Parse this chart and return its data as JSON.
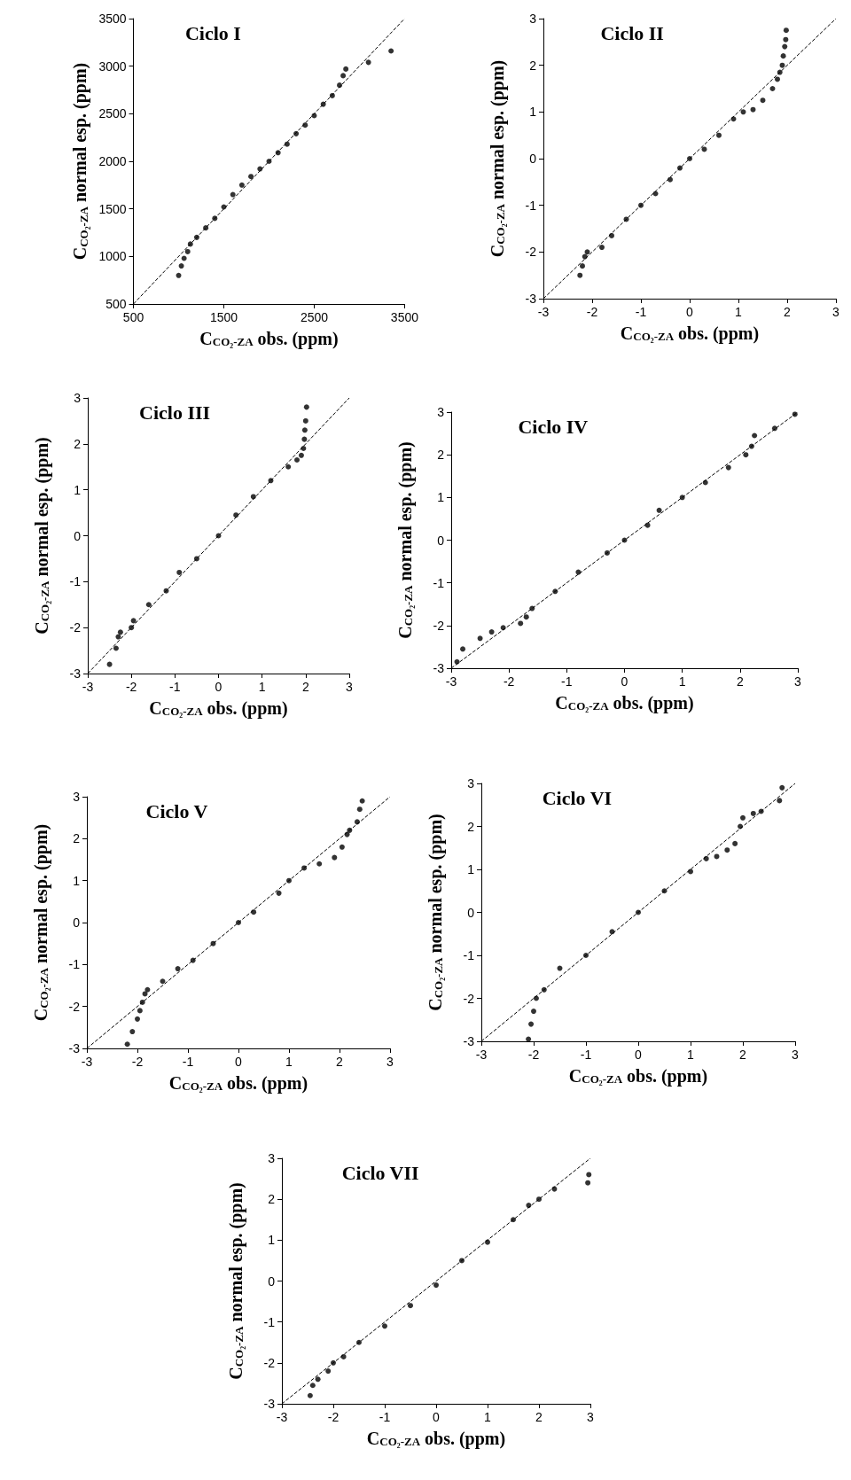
{
  "chart_data": [
    {
      "type": "scatter",
      "title": "Ciclo I",
      "xlabel": "C$_{CO₂-ZA}$ obs. (ppm)",
      "ylabel": "C$_{CO₂-ZA}$ normal esp. (ppm)",
      "xlim": [
        500,
        3500
      ],
      "ylim": [
        500,
        3500
      ],
      "xticks": [
        500,
        1500,
        2500,
        3500
      ],
      "yticks": [
        500,
        1000,
        1500,
        2000,
        2500,
        3000,
        3500
      ],
      "marker": "circle",
      "series": [
        {
          "type": "scatter",
          "color": "#000000",
          "x": [
            1000,
            1030,
            1060,
            1100,
            1130,
            1200,
            1300,
            1400,
            1500,
            1600,
            1700,
            1800,
            1900,
            2000,
            2100,
            2200,
            2300,
            2400,
            2500,
            2600,
            2700,
            2780,
            2820,
            2850,
            3100,
            3350
          ],
          "values": [
            800,
            900,
            980,
            1050,
            1130,
            1200,
            1300,
            1400,
            1520,
            1650,
            1750,
            1840,
            1920,
            2000,
            2090,
            2180,
            2290,
            2380,
            2480,
            2600,
            2690,
            2800,
            2900,
            2970,
            3040,
            3160
          ]
        },
        {
          "type": "line",
          "color": "#000000",
          "line_style": "dashed",
          "marker": "none",
          "x": [
            500,
            3500
          ],
          "values": [
            500,
            3500
          ]
        }
      ]
    },
    {
      "type": "scatter",
      "title": "Ciclo II",
      "xlabel": "C$_{CO₂-ZA}$ obs. (ppm)",
      "ylabel": "C$_{CO₂-ZA}$ normal esp. (ppm)",
      "xlim": [
        -3,
        3
      ],
      "ylim": [
        -3,
        3
      ],
      "xticks": [
        -3,
        -2,
        -1,
        0,
        1,
        2,
        3
      ],
      "yticks": [
        -3,
        -2,
        -1,
        0,
        1,
        2,
        3
      ],
      "marker": "circle",
      "series": [
        {
          "type": "scatter",
          "color": "#000000",
          "x": [
            -2.25,
            -2.2,
            -2.15,
            -2.1,
            -1.8,
            -1.6,
            -1.3,
            -1,
            -0.7,
            -0.4,
            -0.2,
            0,
            0.3,
            0.6,
            0.9,
            1.1,
            1.3,
            1.5,
            1.7,
            1.8,
            1.85,
            1.9,
            1.92,
            1.95,
            1.97,
            1.98
          ],
          "values": [
            -2.5,
            -2.3,
            -2.1,
            -2,
            -1.9,
            -1.65,
            -1.3,
            -1,
            -0.75,
            -0.45,
            -0.2,
            0,
            0.2,
            0.5,
            0.85,
            1,
            1.05,
            1.25,
            1.5,
            1.7,
            1.85,
            2,
            2.2,
            2.4,
            2.55,
            2.75
          ]
        },
        {
          "type": "line",
          "color": "#000000",
          "line_style": "dashed",
          "marker": "none",
          "x": [
            -3,
            3
          ],
          "values": [
            -3,
            3
          ]
        }
      ]
    },
    {
      "type": "scatter",
      "title": "Ciclo III",
      "xlabel": "C$_{CO₂-ZA}$ obs. (ppm)",
      "ylabel": "C$_{CO₂-ZA}$ normal esp. (ppm)",
      "xlim": [
        -3,
        3
      ],
      "ylim": [
        -3,
        3
      ],
      "xticks": [
        -3,
        -2,
        -1,
        0,
        1,
        2,
        3
      ],
      "yticks": [
        -3,
        -2,
        -1,
        0,
        1,
        2,
        3
      ],
      "marker": "circle",
      "series": [
        {
          "type": "scatter",
          "color": "#000000",
          "x": [
            -2.5,
            -2.35,
            -2.3,
            -2.25,
            -2,
            -1.95,
            -1.6,
            -1.2,
            -0.9,
            -0.5,
            0,
            0.4,
            0.8,
            1.2,
            1.6,
            1.8,
            1.9,
            1.95,
            1.97,
            1.98,
            2,
            2.02
          ],
          "values": [
            -2.8,
            -2.45,
            -2.2,
            -2.1,
            -2,
            -1.85,
            -1.5,
            -1.2,
            -0.8,
            -0.5,
            0,
            0.45,
            0.85,
            1.2,
            1.5,
            1.65,
            1.75,
            1.9,
            2.1,
            2.3,
            2.5,
            2.8
          ]
        },
        {
          "type": "line",
          "color": "#000000",
          "line_style": "dashed",
          "marker": "none",
          "x": [
            -3,
            3
          ],
          "values": [
            -3,
            3
          ]
        }
      ]
    },
    {
      "type": "scatter",
      "title": "Ciclo IV",
      "xlabel": "C$_{CO₂-ZA}$ obs. (ppm)",
      "ylabel": "C$_{CO₂-ZA}$ normal esp. (ppm)",
      "xlim": [
        -3,
        3
      ],
      "ylim": [
        -3,
        3
      ],
      "xticks": [
        -3,
        -2,
        -1,
        0,
        1,
        2,
        3
      ],
      "yticks": [
        -3,
        -2,
        -1,
        0,
        1,
        2,
        3
      ],
      "marker": "circle",
      "series": [
        {
          "type": "scatter",
          "color": "#000000",
          "x": [
            -2.9,
            -2.8,
            -2.5,
            -2.3,
            -2.1,
            -1.8,
            -1.7,
            -1.6,
            -1.2,
            -0.8,
            -0.3,
            0,
            0.4,
            0.6,
            1,
            1.4,
            1.8,
            2.1,
            2.2,
            2.25,
            2.6,
            2.95
          ],
          "values": [
            -2.85,
            -2.55,
            -2.3,
            -2.15,
            -2.05,
            -1.95,
            -1.8,
            -1.6,
            -1.2,
            -0.75,
            -0.3,
            0,
            0.35,
            0.7,
            1,
            1.35,
            1.7,
            2,
            2.2,
            2.45,
            2.62,
            2.95
          ]
        },
        {
          "type": "line",
          "color": "#000000",
          "line_style": "dashed",
          "marker": "none",
          "x": [
            -3,
            3
          ],
          "values": [
            -3,
            3
          ]
        }
      ]
    },
    {
      "type": "scatter",
      "title": "Ciclo V",
      "xlabel": "C$_{CO₂-ZA}$ obs. (ppm)",
      "ylabel": "C$_{CO₂-ZA}$ normal esp. (ppm)",
      "xlim": [
        -3,
        3
      ],
      "ylim": [
        -3,
        3
      ],
      "xticks": [
        -3,
        -2,
        -1,
        0,
        1,
        2,
        3
      ],
      "yticks": [
        -3,
        -2,
        -1,
        0,
        1,
        2,
        3
      ],
      "marker": "circle",
      "series": [
        {
          "type": "scatter",
          "color": "#000000",
          "x": [
            -2.2,
            -2.1,
            -2,
            -1.95,
            -1.9,
            -1.85,
            -1.8,
            -1.5,
            -1.2,
            -0.9,
            -0.5,
            0,
            0.3,
            0.8,
            1,
            1.3,
            1.6,
            1.9,
            2.05,
            2.15,
            2.2,
            2.35,
            2.4,
            2.45
          ],
          "values": [
            -2.9,
            -2.6,
            -2.3,
            -2.1,
            -1.9,
            -1.7,
            -1.6,
            -1.4,
            -1.1,
            -0.9,
            -0.5,
            0,
            0.25,
            0.7,
            1,
            1.3,
            1.4,
            1.55,
            1.8,
            2.1,
            2.2,
            2.4,
            2.7,
            2.9
          ]
        },
        {
          "type": "line",
          "color": "#000000",
          "line_style": "dashed",
          "marker": "none",
          "x": [
            -3,
            3
          ],
          "values": [
            -3,
            3
          ]
        }
      ]
    },
    {
      "type": "scatter",
      "title": "Ciclo VI",
      "xlabel": "C$_{CO₂-ZA}$ obs. (ppm)",
      "ylabel": "C$_{CO₂-ZA}$ normal esp. (ppm)",
      "xlim": [
        -3,
        3
      ],
      "ylim": [
        -3,
        3
      ],
      "xticks": [
        -3,
        -2,
        -1,
        0,
        1,
        2,
        3
      ],
      "yticks": [
        -3,
        -2,
        -1,
        0,
        1,
        2,
        3
      ],
      "marker": "circle",
      "series": [
        {
          "type": "scatter",
          "color": "#000000",
          "x": [
            -2.1,
            -2.05,
            -2,
            -1.95,
            -1.8,
            -1.5,
            -1,
            -0.5,
            0,
            0.5,
            1,
            1.3,
            1.5,
            1.7,
            1.85,
            1.95,
            2,
            2.2,
            2.35,
            2.7,
            2.75
          ],
          "values": [
            -2.95,
            -2.6,
            -2.3,
            -2,
            -1.8,
            -1.3,
            -1,
            -0.45,
            0,
            0.5,
            0.95,
            1.25,
            1.3,
            1.45,
            1.6,
            2,
            2.2,
            2.3,
            2.35,
            2.6,
            2.9
          ]
        },
        {
          "type": "line",
          "color": "#000000",
          "line_style": "dashed",
          "marker": "none",
          "x": [
            -3,
            3
          ],
          "values": [
            -3,
            3
          ]
        }
      ]
    },
    {
      "type": "scatter",
      "title": "Ciclo VII",
      "xlabel": "C$_{CO₂-ZA}$ obs. (ppm)",
      "ylabel": "C$_{CO₂-ZA}$ normal esp. (ppm)",
      "xlim": [
        -3,
        3
      ],
      "ylim": [
        -3,
        3
      ],
      "xticks": [
        -3,
        -2,
        -1,
        0,
        1,
        2,
        3
      ],
      "yticks": [
        -3,
        -2,
        -1,
        0,
        1,
        2,
        3
      ],
      "marker": "circle",
      "series": [
        {
          "type": "scatter",
          "color": "#000000",
          "x": [
            -2.45,
            -2.4,
            -2.3,
            -2.1,
            -2,
            -1.8,
            -1.5,
            -1,
            -0.5,
            0,
            0.5,
            1,
            1.5,
            1.8,
            2,
            2.3,
            2.95,
            2.97
          ],
          "values": [
            -2.8,
            -2.55,
            -2.4,
            -2.2,
            -2,
            -1.85,
            -1.5,
            -1.1,
            -0.6,
            -0.1,
            0.5,
            0.95,
            1.5,
            1.85,
            2,
            2.25,
            2.4,
            2.6
          ]
        },
        {
          "type": "line",
          "color": "#000000",
          "line_style": "dashed",
          "marker": "none",
          "x": [
            -3,
            3
          ],
          "values": [
            -3,
            3
          ]
        }
      ]
    }
  ]
}
